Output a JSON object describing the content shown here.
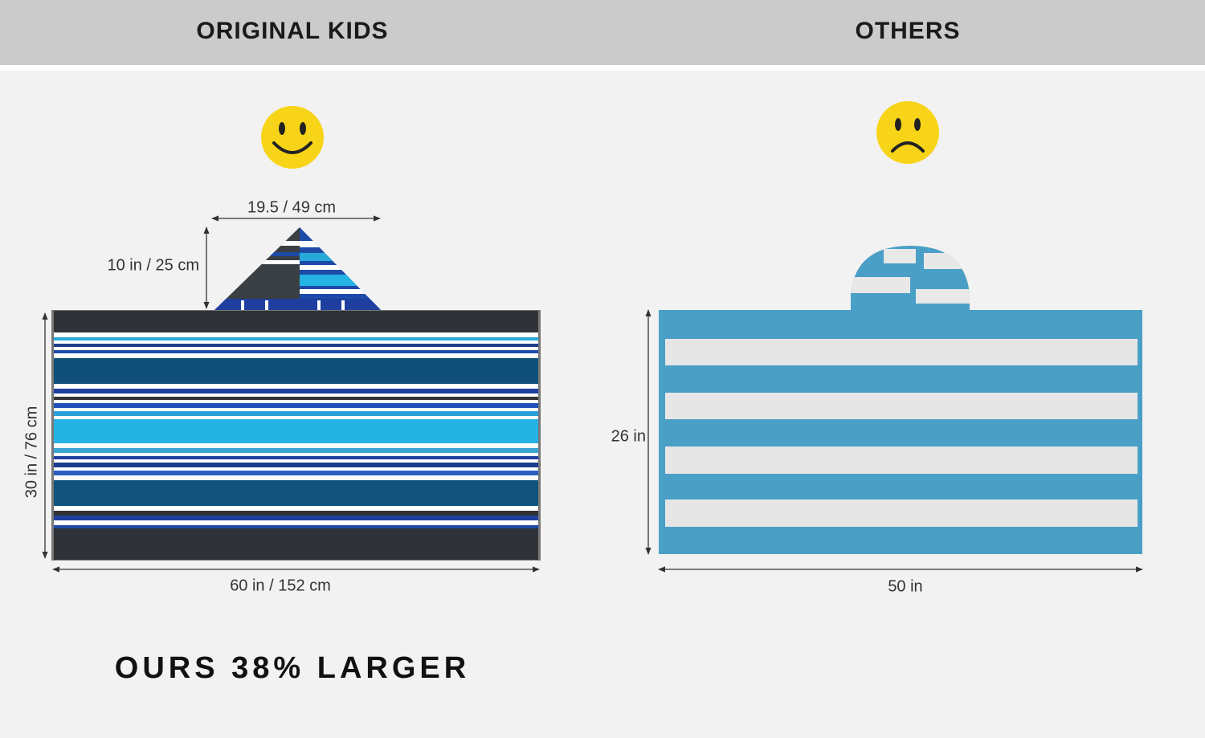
{
  "header": {
    "left_title": "ORIGINAL KIDS",
    "right_title": "OTHERS"
  },
  "left_panel": {
    "hood_width": "19.5 / 49 cm",
    "hood_height": "10 in / 25 cm",
    "towel_height": "30 in / 76 cm",
    "towel_width": "60 in / 152 cm"
  },
  "right_panel": {
    "towel_height": "26 in",
    "towel_width": "50 in"
  },
  "footer": {
    "claim": "OURS 38% LARGER"
  }
}
